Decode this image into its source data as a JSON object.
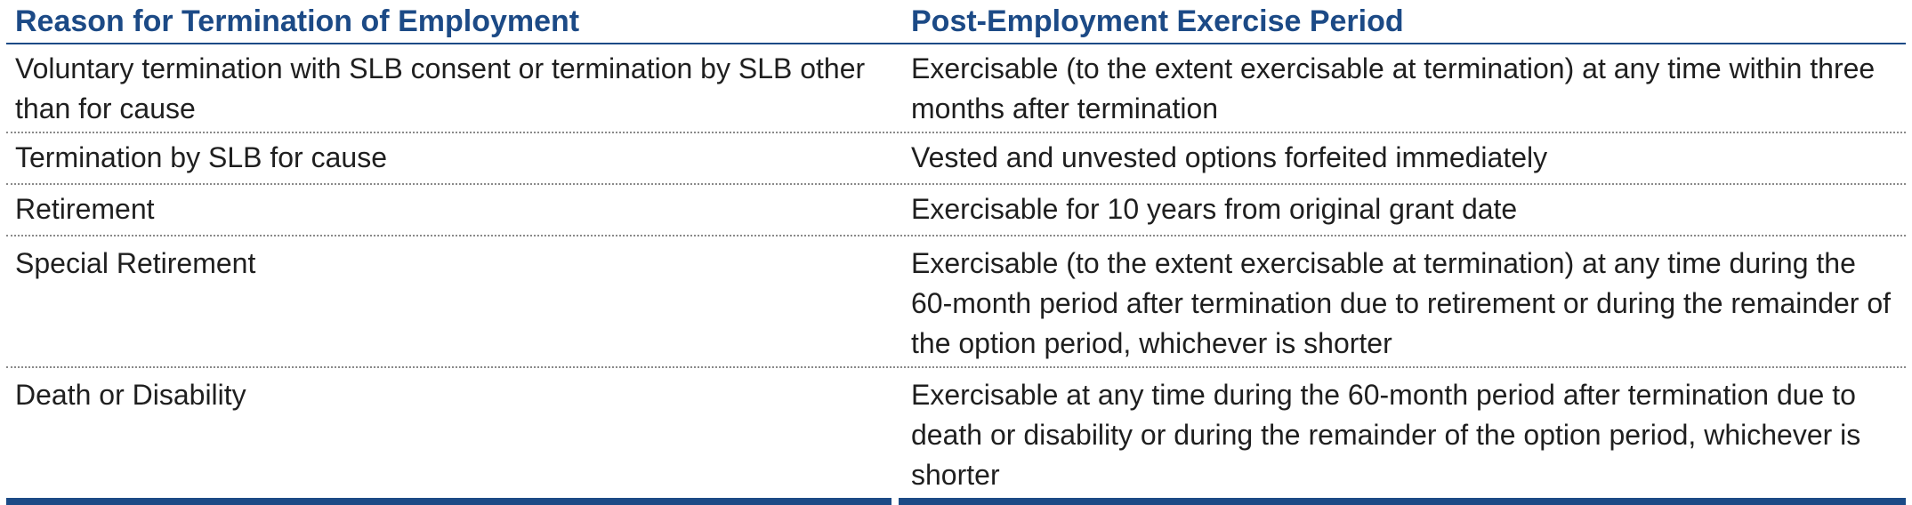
{
  "table": {
    "headers": {
      "reason": "Reason for Termination of Employment",
      "period": "Post-Employment Exercise Period"
    },
    "rows": [
      {
        "reason": "Voluntary termination with SLB consent or termination by SLB other than for cause",
        "period": "Exercisable (to the extent exercisable at termination) at any time within three months after termination"
      },
      {
        "reason": "Termination by SLB for cause",
        "period": "Vested and unvested options forfeited immediately"
      },
      {
        "reason": "Retirement",
        "period": "Exercisable for 10 years from original grant date"
      },
      {
        "reason": "Special Retirement",
        "period": "Exercisable (to the extent exercisable at termination) at any time during the 60-month period after termination due to retirement or during the remainder of the option period, whichever is shorter"
      },
      {
        "reason": "Death or Disability",
        "period": "Exercisable at any time during the 60-month period after termination due to death or disability or during the remainder of the option period, whichever is shorter"
      }
    ]
  },
  "colors": {
    "header_text": "#1c4a86",
    "rule": "#1c4a86",
    "body_text": "#1f1f1f",
    "dotted_rule": "#8a8a8a"
  }
}
